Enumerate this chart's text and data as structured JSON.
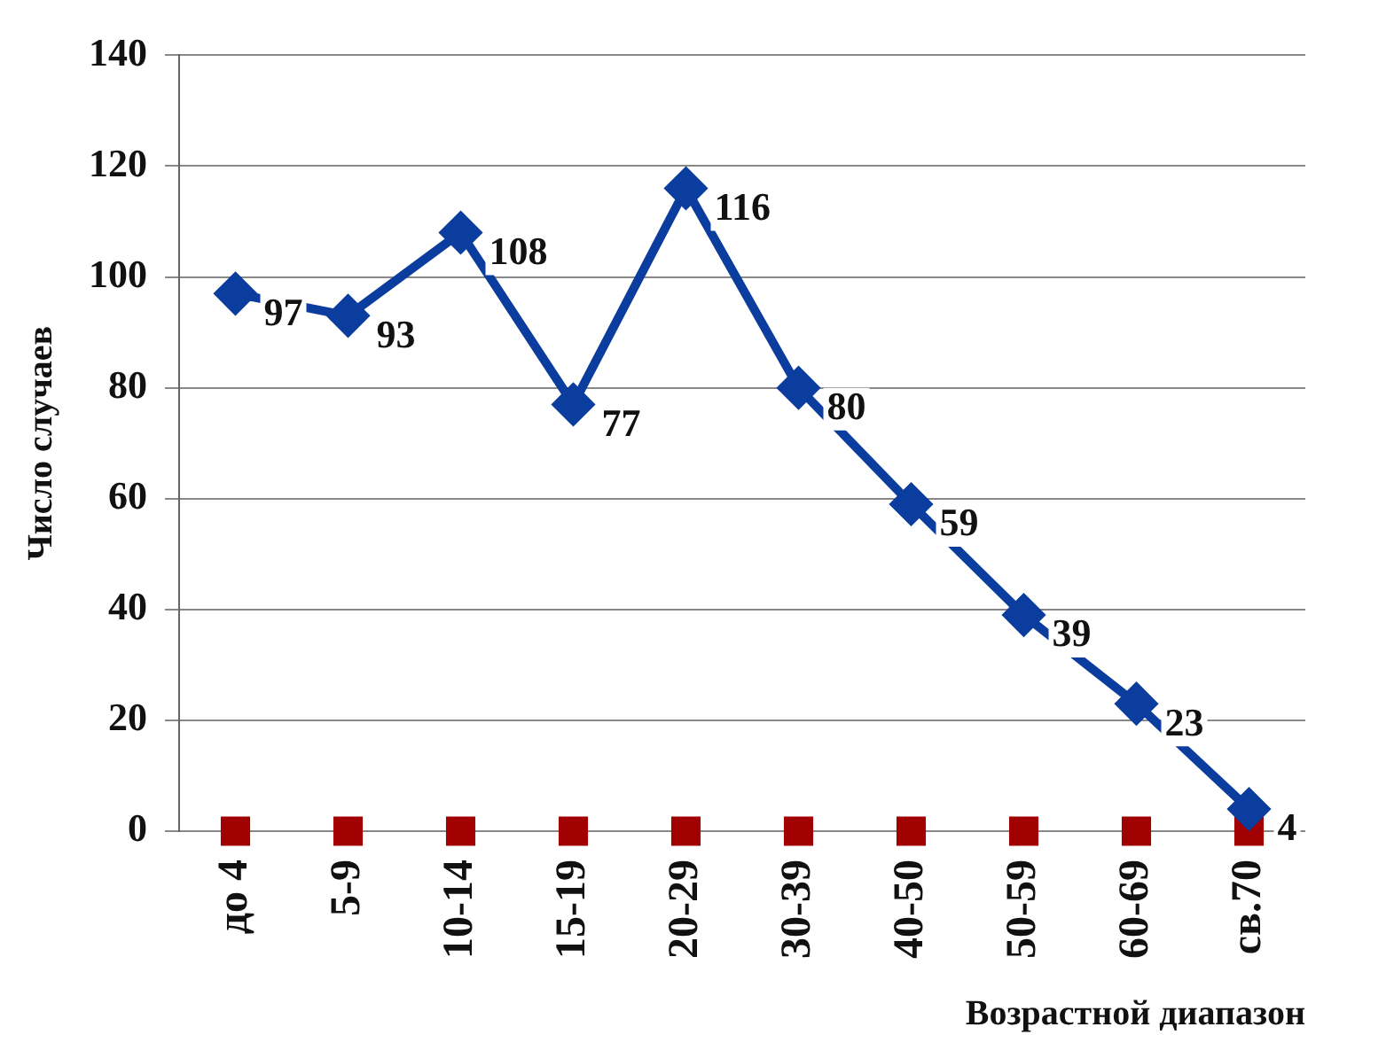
{
  "chart_data": {
    "type": "line",
    "xlabel": "Возрастной диапазон",
    "ylabel": "Число случаев",
    "categories": [
      "до 4",
      "5-9",
      "10-14",
      "15-19",
      "20-29",
      "30-39",
      "40-50",
      "50-59",
      "60-69",
      "св.70"
    ],
    "series": [
      {
        "color": "#0b3d9e",
        "values": [
          97,
          93,
          108,
          77,
          116,
          80,
          59,
          39,
          23,
          4
        ],
        "value_labels": [
          "97",
          "93",
          "108",
          "77",
          "116",
          "80",
          "59",
          "39",
          "23",
          "4"
        ],
        "marker": "diamond"
      },
      {
        "type": "scatter",
        "color": "#a00000",
        "values": [
          0,
          0,
          0,
          0,
          0,
          0,
          0,
          0,
          0,
          0
        ],
        "marker": "square"
      }
    ],
    "ylim": [
      0,
      140
    ],
    "yticks": [
      0,
      20,
      40,
      60,
      80,
      100,
      120,
      140
    ],
    "grid": "y",
    "legend": false,
    "line_style": "solid"
  }
}
